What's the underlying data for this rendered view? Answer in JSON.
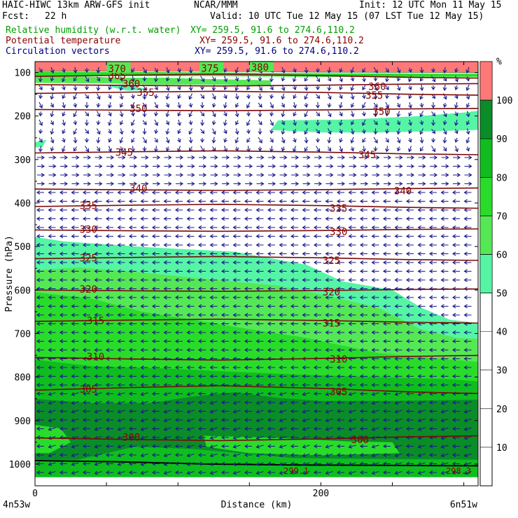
{
  "header": {
    "model": "HAIC-HIWC 13km ARW-GFS init",
    "org": "NCAR/MMM",
    "init": "Init: 12 UTC Mon 11 May 15",
    "fcst_label": "Fcst:",
    "fcst_value": "22 h",
    "valid": "Valid: 10 UTC Tue 12 May 15 (07 LST Tue 12 May 15)"
  },
  "fields": [
    {
      "label": "Relative humidity (w.r.t. water)",
      "xy": "XY= 259.5, 91.6 to 274.6,110.2",
      "color": "#00a000"
    },
    {
      "label": "Potential temperature",
      "xy": "XY= 259.5, 91.6 to 274.6,110.2",
      "color": "#8b0000"
    },
    {
      "label": "Circulation vectors",
      "xy": "XY= 259.5, 91.6 to 274.6,110.2",
      "color": "#000080"
    }
  ],
  "chart_data": {
    "type": "cross-section",
    "xlabel": "Distance (km)",
    "ylabel": "Pressure (hPa)",
    "xlim": [
      0,
      310
    ],
    "ylim": [
      1050,
      75
    ],
    "x_ticks": [
      0,
      200
    ],
    "y_ticks": [
      100,
      200,
      300,
      400,
      500,
      600,
      700,
      800,
      900,
      1000
    ],
    "endpoint_left": "4n53w",
    "endpoint_right": "6n51w",
    "colorbar": {
      "unit": "%",
      "levels": [
        10,
        20,
        30,
        40,
        50,
        60,
        70,
        80,
        90,
        100
      ],
      "bands": [
        {
          "from": 50,
          "to": 60,
          "color": "#55f5a5"
        },
        {
          "from": 60,
          "to": 70,
          "color": "#55e855"
        },
        {
          "from": 70,
          "to": 80,
          "color": "#2adc2a"
        },
        {
          "from": 80,
          "to": 90,
          "color": "#0fbe1e"
        },
        {
          "from": 90,
          "to": 100,
          "color": "#0a8c28"
        },
        {
          "from": 100,
          "to": 110,
          "color": "#ff7878"
        }
      ]
    },
    "theta_contours": [
      {
        "level": 300,
        "p": 940
      },
      {
        "level": 305,
        "p": 830
      },
      {
        "level": 310,
        "p": 755
      },
      {
        "level": 315,
        "p": 672
      },
      {
        "level": 320,
        "p": 600
      },
      {
        "level": 325,
        "p": 528
      },
      {
        "level": 330,
        "p": 462
      },
      {
        "level": 335,
        "p": 408
      },
      {
        "level": 340,
        "p": 368
      },
      {
        "level": 345,
        "p": 285
      },
      {
        "level": 350,
        "p": 185
      },
      {
        "level": 355,
        "p": 148
      },
      {
        "level": 360,
        "p": 128
      },
      {
        "level": 365,
        "p": 109
      },
      {
        "level": 370,
        "p": 93
      },
      {
        "level": 375,
        "p": 92
      },
      {
        "level": 380,
        "p": 90
      }
    ],
    "extra_labels": [
      "299.1",
      "298.3"
    ]
  }
}
